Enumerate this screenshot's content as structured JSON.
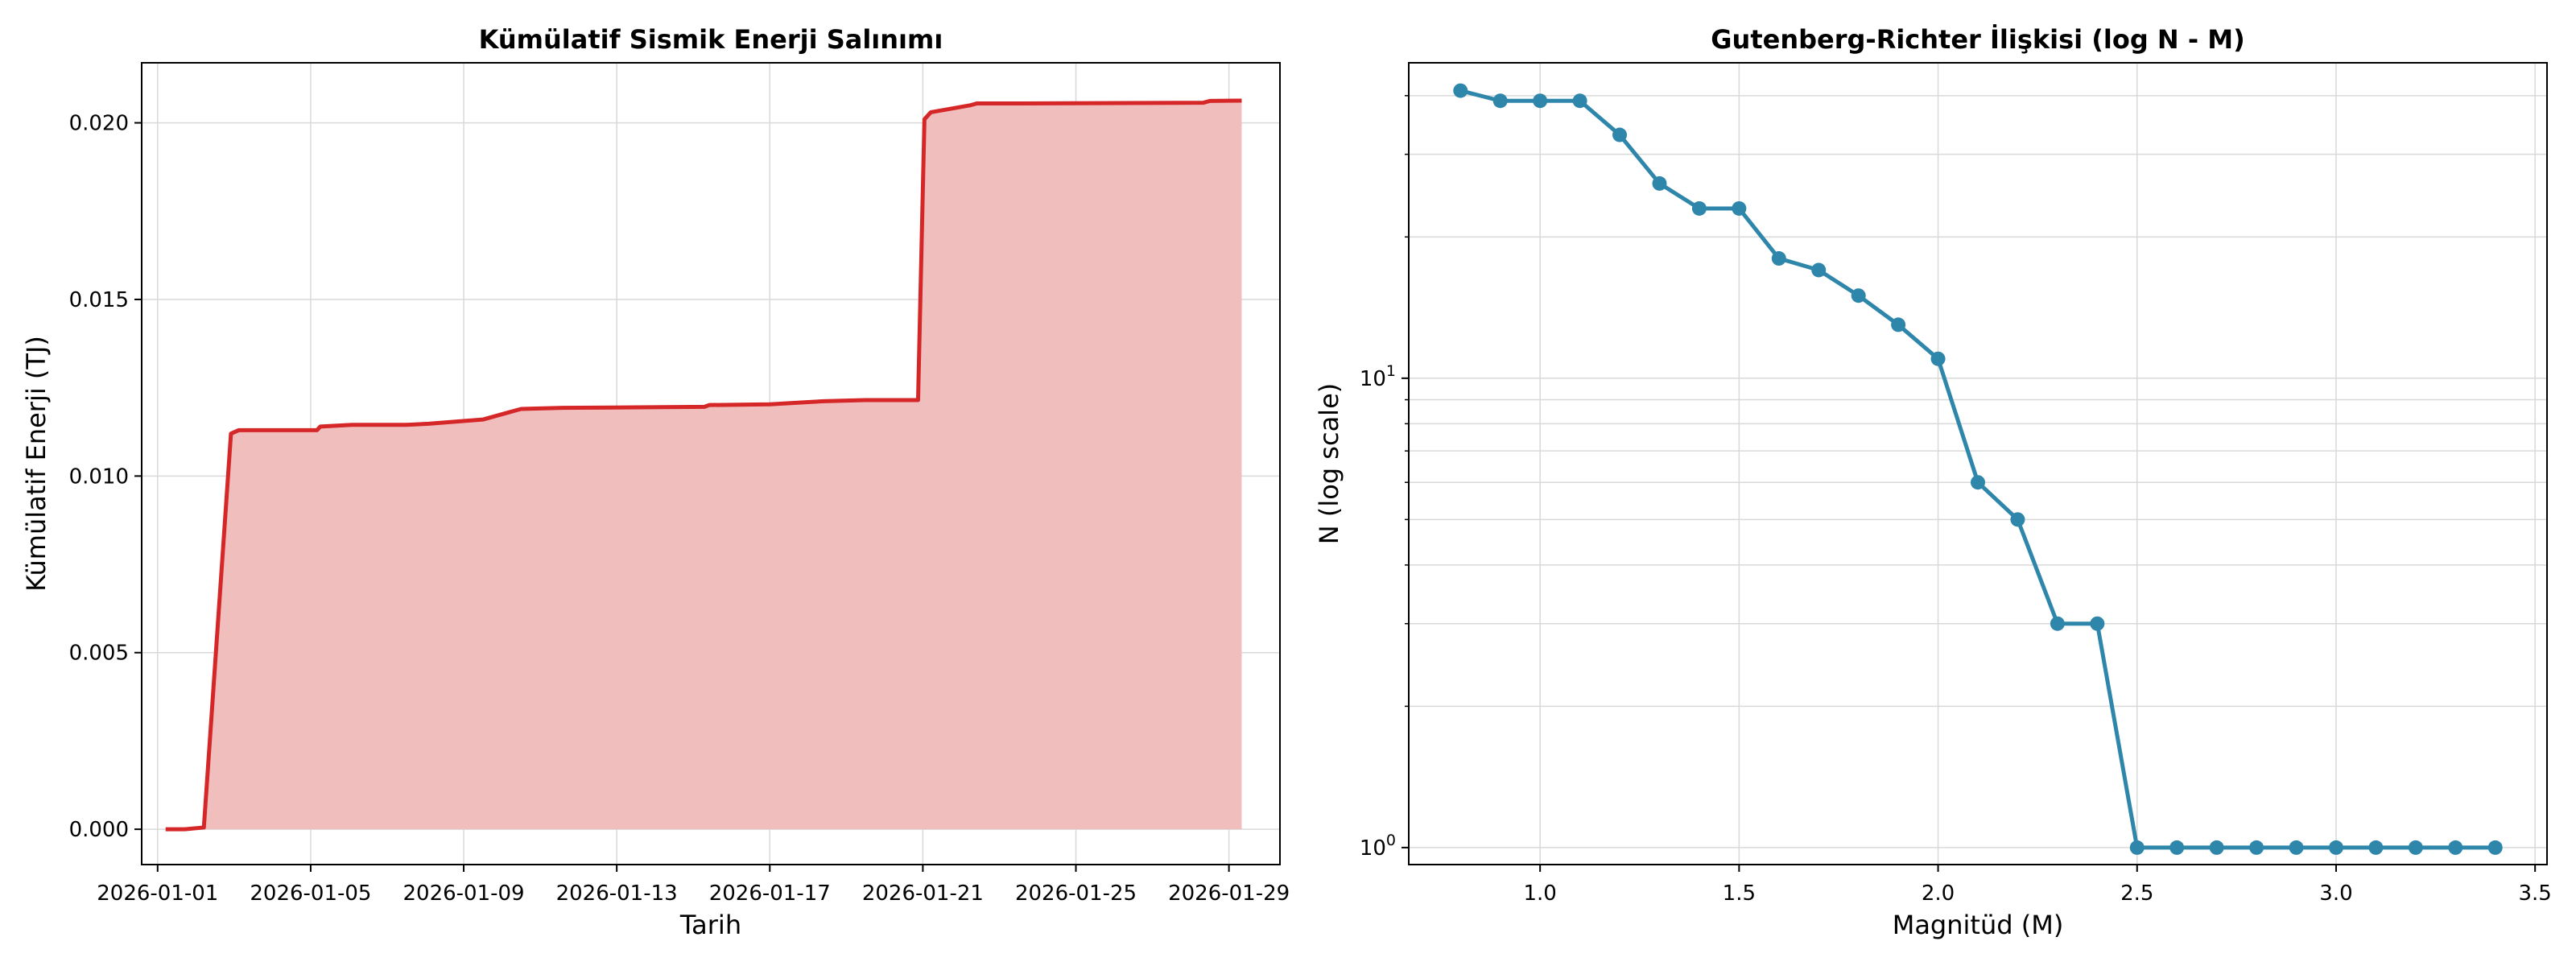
{
  "chart_data": [
    {
      "type": "area",
      "title": "Kümülatif Sismik Enerji Salınımı",
      "xlabel": "Tarih",
      "ylabel": "Kümülatif Enerji (TJ)",
      "x_ticks": [
        "2026-01-01",
        "2026-01-05",
        "2026-01-09",
        "2026-01-13",
        "2026-01-17",
        "2026-01-21",
        "2026-01-25",
        "2026-01-29"
      ],
      "y_ticks": [
        "0.000",
        "0.005",
        "0.010",
        "0.015",
        "0.020"
      ],
      "xlim": [
        "2025-12-31T14:00",
        "2026-01-30T08:00"
      ],
      "ylim": [
        -0.001,
        0.0217
      ],
      "grid": true,
      "line_color": "#d62728",
      "fill_color": "#f1bebe",
      "series": [
        {
          "x": [
            "2026-01-01T05:00",
            "2026-01-01T17:00",
            "2026-01-02T05:00",
            "2026-01-02T22:00",
            "2026-01-03T03:00",
            "2026-01-04T07:00",
            "2026-01-05T04:00",
            "2026-01-05T06:00",
            "2026-01-06T02:00",
            "2026-01-07T12:00",
            "2026-01-08T02:00",
            "2026-01-09T12:00",
            "2026-01-10T12:00",
            "2026-01-11T14:00",
            "2026-01-14T05:00",
            "2026-01-15T07:00",
            "2026-01-15T10:00",
            "2026-01-17T00:00",
            "2026-01-18T10:00",
            "2026-01-19T12:00",
            "2026-01-20T21:00",
            "2026-01-21T01:00",
            "2026-01-21T05:00",
            "2026-01-22T06:00",
            "2026-01-22T10:00",
            "2026-01-23T14:00",
            "2026-01-28T08:00",
            "2026-01-28T12:00",
            "2026-01-29T08:00"
          ],
          "y": [
            0.0,
            0.0,
            5e-05,
            0.0112,
            0.0113,
            0.0113,
            0.0113,
            0.0114,
            0.01145,
            0.01145,
            0.01148,
            0.0116,
            0.0119,
            0.01193,
            0.01195,
            0.01196,
            0.01201,
            0.01203,
            0.01212,
            0.01215,
            0.01215,
            0.0201,
            0.0203,
            0.0205,
            0.02055,
            0.02055,
            0.02057,
            0.02062,
            0.02063
          ]
        }
      ]
    },
    {
      "type": "line",
      "title": "Gutenberg-Richter İlişkisi (log N - M)",
      "xlabel": "Magnitüd (M)",
      "ylabel": "N (log scale)",
      "y_scale": "log",
      "x_ticks": [
        "1.0",
        "1.5",
        "2.0",
        "2.5",
        "3.0",
        "3.5"
      ],
      "y_ticks": [
        {
          "base": "10",
          "exp": "1",
          "value": 10
        },
        {
          "base": "10",
          "exp": "0",
          "value": 1
        }
      ],
      "xlim": [
        0.67,
        3.53
      ],
      "ylim": [
        0.92,
        47
      ],
      "grid": true,
      "line_color": "#2e86ab",
      "series": [
        {
          "x": [
            0.8,
            0.9,
            1.0,
            1.1,
            1.2,
            1.3,
            1.4,
            1.5,
            1.6,
            1.7,
            1.8,
            1.9,
            2.0,
            2.1,
            2.2,
            2.3,
            2.4,
            2.5,
            2.6,
            2.7,
            2.8,
            2.9,
            3.0,
            3.1,
            3.2,
            3.3,
            3.4
          ],
          "y": [
            41,
            39,
            39,
            39,
            33,
            26,
            23,
            23,
            18,
            17,
            15,
            13,
            11,
            6,
            5,
            3,
            3,
            1,
            1,
            1,
            1,
            1,
            1,
            1,
            1,
            1,
            1
          ]
        }
      ]
    }
  ]
}
